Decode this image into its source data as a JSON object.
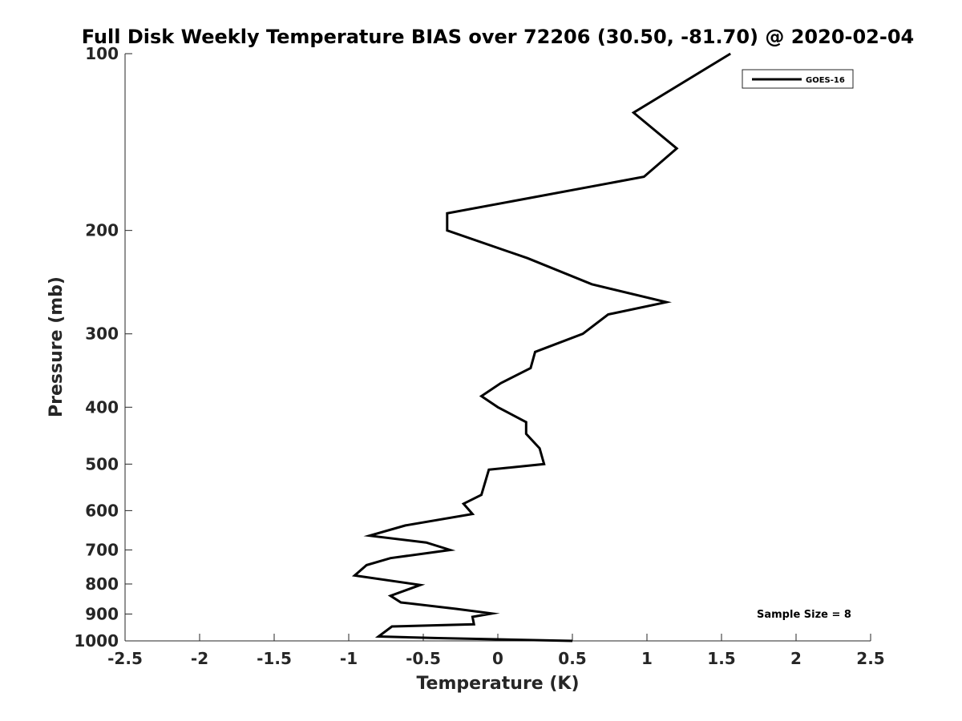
{
  "chart_data": {
    "type": "line",
    "title": "Full Disk Weekly Temperature BIAS over 72206 (30.50, -81.70) @ 2020-02-04",
    "xlabel": "Temperature (K)",
    "ylabel": "Pressure (mb)",
    "xlim": [
      -2.5,
      2.5
    ],
    "ylim": [
      1000,
      100
    ],
    "y_scale": "log",
    "y_reversed": true,
    "grid": false,
    "x_ticks": [
      "-2.5",
      "-2",
      "-1.5",
      "-1",
      "-0.5",
      "0",
      "0.5",
      "1",
      "1.5",
      "2",
      "2.5"
    ],
    "y_ticks": [
      "100",
      "200",
      "300",
      "400",
      "500",
      "600",
      "700",
      "800",
      "900",
      "1000"
    ],
    "legend_position": "top-right",
    "annotation": "Sample Size = 8",
    "series": [
      {
        "name": "GOES-16",
        "color": "#000000",
        "points": [
          {
            "p": 100,
            "t": 1.56
          },
          {
            "p": 126,
            "t": 0.91
          },
          {
            "p": 145,
            "t": 1.2
          },
          {
            "p": 162,
            "t": 0.98
          },
          {
            "p": 187,
            "t": -0.34
          },
          {
            "p": 200,
            "t": -0.34
          },
          {
            "p": 223,
            "t": 0.2
          },
          {
            "p": 247,
            "t": 0.63
          },
          {
            "p": 265,
            "t": 1.13
          },
          {
            "p": 278,
            "t": 0.74
          },
          {
            "p": 300,
            "t": 0.57
          },
          {
            "p": 322,
            "t": 0.25
          },
          {
            "p": 343,
            "t": 0.22
          },
          {
            "p": 364,
            "t": 0.02
          },
          {
            "p": 383,
            "t": -0.11
          },
          {
            "p": 400,
            "t": 0.0
          },
          {
            "p": 424,
            "t": 0.19
          },
          {
            "p": 444,
            "t": 0.19
          },
          {
            "p": 470,
            "t": 0.28
          },
          {
            "p": 500,
            "t": 0.31
          },
          {
            "p": 511,
            "t": -0.06
          },
          {
            "p": 564,
            "t": -0.11
          },
          {
            "p": 584,
            "t": -0.23
          },
          {
            "p": 608,
            "t": -0.17
          },
          {
            "p": 636,
            "t": -0.62
          },
          {
            "p": 662,
            "t": -0.86
          },
          {
            "p": 680,
            "t": -0.48
          },
          {
            "p": 700,
            "t": -0.32
          },
          {
            "p": 723,
            "t": -0.72
          },
          {
            "p": 743,
            "t": -0.88
          },
          {
            "p": 774,
            "t": -0.96
          },
          {
            "p": 803,
            "t": -0.52
          },
          {
            "p": 838,
            "t": -0.72
          },
          {
            "p": 860,
            "t": -0.65
          },
          {
            "p": 882,
            "t": -0.28
          },
          {
            "p": 898,
            "t": -0.04
          },
          {
            "p": 910,
            "t": -0.17
          },
          {
            "p": 937,
            "t": -0.16
          },
          {
            "p": 945,
            "t": -0.71
          },
          {
            "p": 983,
            "t": -0.8
          },
          {
            "p": 989,
            "t": -0.4
          },
          {
            "p": 1000,
            "t": 0.5
          }
        ]
      }
    ]
  }
}
